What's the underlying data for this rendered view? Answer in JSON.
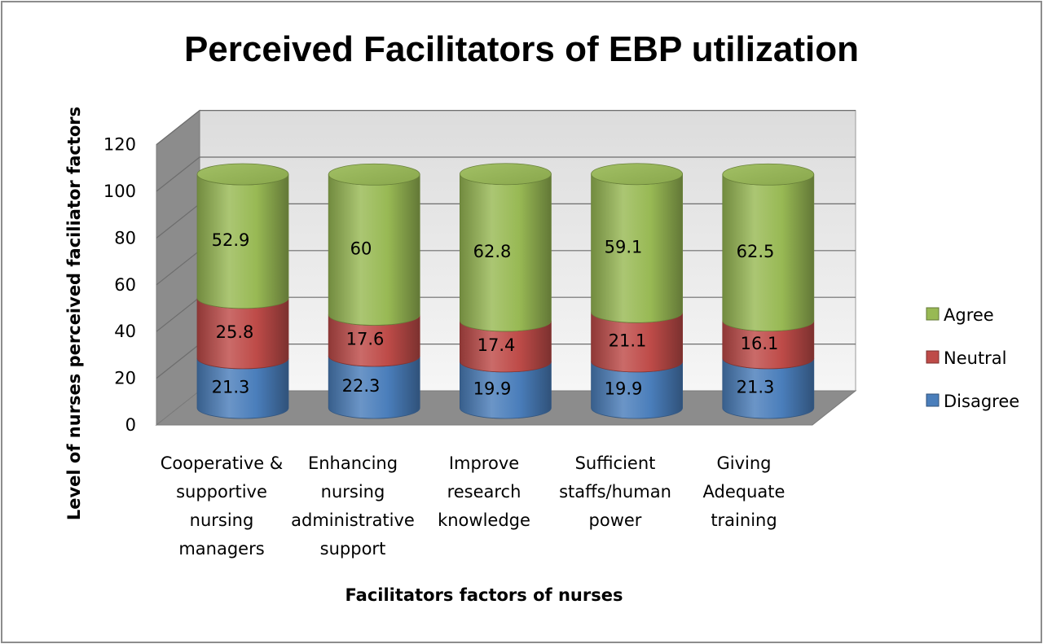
{
  "chart_data": {
    "type": "bar",
    "title": "Perceived Facilitators of EBP utilization",
    "xlabel": "Facilitators factors of nurses",
    "ylabel": "Level of nurses perceived faciliator factors",
    "ylim": [
      0,
      120
    ],
    "yticks": [
      "0",
      "20",
      "40",
      "60",
      "80",
      "100",
      "120"
    ],
    "stacked": true,
    "grid": true,
    "legend_position": "right",
    "categories": [
      [
        "Cooperative &",
        "supportive",
        "nursing",
        "managers"
      ],
      [
        "Enhancing",
        "nursing",
        "administrative",
        "support"
      ],
      [
        "Improve",
        "research",
        "knowledge"
      ],
      [
        "Sufficient",
        "staffs/human",
        "power"
      ],
      [
        "Giving",
        "Adequate",
        "training"
      ]
    ],
    "series": [
      {
        "name": "Disagree",
        "color": "#4a7ebb",
        "values": [
          21.3,
          22.3,
          19.9,
          19.9,
          21.3
        ],
        "labels": [
          "21.3",
          "22.3",
          "19.9",
          "19.9",
          "21.3"
        ]
      },
      {
        "name": "Neutral",
        "color": "#be4b48",
        "values": [
          25.8,
          17.6,
          17.4,
          21.1,
          16.1
        ],
        "labels": [
          "25.8",
          "17.6",
          "17.4",
          "21.1",
          "16.1"
        ]
      },
      {
        "name": "Agree",
        "color": "#98b954",
        "values": [
          52.9,
          60,
          62.8,
          59.1,
          62.5
        ],
        "labels": [
          "52.9",
          "60",
          "62.8",
          "59.1",
          "62.5"
        ]
      }
    ],
    "legend_order": [
      "Agree",
      "Neutral",
      "Disagree"
    ]
  }
}
